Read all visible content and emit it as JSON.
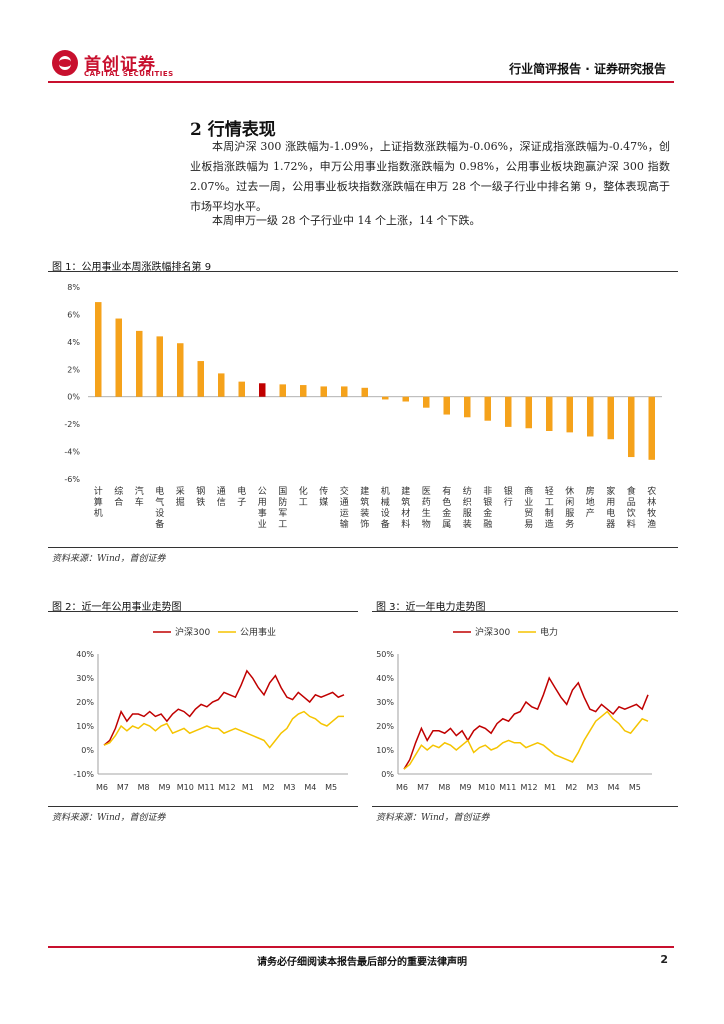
{
  "header": {
    "logo_cn": "首创证券",
    "logo_en": "CAPITAL SECURITIES",
    "report_type": "行业简评报告 · 证券研究报告"
  },
  "section": {
    "title": "2 行情表现",
    "para1": "本周沪深 300 涨跌幅为-1.09%，上证指数涨跌幅为-0.06%，深证成指涨跌幅为-0.47%，创业板指涨跌幅为 1.72%，申万公用事业指数涨跌幅为 0.98%，公用事业板块跑赢沪深 300 指数 2.07%。过去一周，公用事业板块指数涨跌幅在申万 28 个一级子行业中排名第 9，整体表现高于市场平均水平。",
    "para2": "本周申万一级 28 个子行业中 14 个上涨，14 个下跌。"
  },
  "fig1": {
    "title": "图 1：公用事业本周涨跌幅排名第 9",
    "source": "资料来源：Wind，首创证券"
  },
  "fig2": {
    "title": "图 2：近一年公用事业走势图",
    "source": "资料来源：Wind，首创证券"
  },
  "fig3": {
    "title": "图 3：近一年电力走势图",
    "source": "资料来源：Wind，首创证券"
  },
  "footer": {
    "disclaimer": "请务必仔细阅读本报告最后部分的重要法律声明",
    "page": "2"
  },
  "colors": {
    "brand": "#c8102e",
    "bar": "#f5a21b",
    "highlight": "#c00000",
    "line1": "#c00000",
    "line2": "#f5c400"
  },
  "chart_data": [
    {
      "type": "bar",
      "title": "公用事业本周涨跌幅排名第 9",
      "categories": [
        "计算机",
        "综合",
        "汽车",
        "电气设备",
        "采掘",
        "钢铁",
        "通信",
        "电子",
        "公用事业",
        "国防军工",
        "化工",
        "传媒",
        "交通运输",
        "建筑装饰",
        "机械设备",
        "建筑材料",
        "医药生物",
        "有色金属",
        "纺织服装",
        "非银金融",
        "银行",
        "商业贸易",
        "轻工制造",
        "休闲服务",
        "房地产",
        "家用电器",
        "食品饮料",
        "农林牧渔"
      ],
      "values": [
        6.9,
        5.7,
        4.8,
        4.4,
        3.9,
        2.6,
        1.7,
        1.1,
        0.98,
        0.9,
        0.85,
        0.75,
        0.75,
        0.65,
        -0.2,
        -0.35,
        -0.8,
        -1.3,
        -1.5,
        -1.75,
        -2.2,
        -2.3,
        -2.5,
        -2.6,
        -2.9,
        -3.1,
        -4.4,
        -4.6
      ],
      "highlight_index": 8,
      "yticks": [
        "8%",
        "6%",
        "4%",
        "2%",
        "0%",
        "-2%",
        "-4%",
        "-6%"
      ],
      "ylim": [
        -6,
        8
      ]
    },
    {
      "type": "line",
      "title": "近一年公用事业走势图",
      "legend": [
        "沪深300",
        "公用事业"
      ],
      "xticks": [
        "M6",
        "M7",
        "M8",
        "M9",
        "M10",
        "M11",
        "M12",
        "M1",
        "M2",
        "M3",
        "M4",
        "M5"
      ],
      "yticks": [
        "40%",
        "30%",
        "20%",
        "10%",
        "0%",
        "-10%"
      ],
      "ylim": [
        -10,
        40
      ],
      "series": [
        {
          "name": "沪深300",
          "values": [
            2,
            4,
            9,
            16,
            12,
            15,
            15,
            14,
            16,
            14,
            15,
            12,
            15,
            17,
            16,
            14,
            17,
            19,
            18,
            20,
            21,
            24,
            23,
            22,
            27,
            33,
            30,
            26,
            23,
            28,
            31,
            26,
            22,
            21,
            24,
            22,
            20,
            23,
            22,
            23,
            24,
            22,
            23
          ]
        },
        {
          "name": "公用事业",
          "values": [
            2,
            3,
            6,
            10,
            8,
            10,
            9,
            11,
            10,
            8,
            10,
            11,
            7,
            8,
            9,
            7,
            8,
            9,
            10,
            9,
            9,
            7,
            8,
            9,
            8,
            7,
            6,
            5,
            4,
            1,
            4,
            7,
            9,
            13,
            15,
            16,
            14,
            13,
            11,
            10,
            12,
            14,
            14
          ]
        }
      ]
    },
    {
      "type": "line",
      "title": "近一年电力走势图",
      "legend": [
        "沪深300",
        "电力"
      ],
      "xticks": [
        "M6",
        "M7",
        "M8",
        "M9",
        "M10",
        "M11",
        "M12",
        "M1",
        "M2",
        "M3",
        "M4",
        "M5"
      ],
      "yticks": [
        "50%",
        "40%",
        "30%",
        "20%",
        "10%",
        "0%"
      ],
      "ylim": [
        0,
        50
      ],
      "series": [
        {
          "name": "沪深300",
          "values": [
            2,
            6,
            13,
            19,
            14,
            18,
            18,
            17,
            19,
            16,
            18,
            14,
            18,
            20,
            19,
            17,
            21,
            23,
            22,
            25,
            26,
            30,
            28,
            27,
            33,
            40,
            36,
            32,
            29,
            35,
            38,
            32,
            27,
            26,
            29,
            27,
            25,
            28,
            27,
            28,
            29,
            27,
            33
          ]
        },
        {
          "name": "电力",
          "values": [
            2,
            4,
            8,
            12,
            10,
            12,
            11,
            13,
            12,
            10,
            12,
            14,
            9,
            11,
            12,
            10,
            11,
            13,
            14,
            13,
            13,
            11,
            12,
            13,
            12,
            10,
            8,
            7,
            6,
            5,
            9,
            14,
            18,
            22,
            24,
            26,
            23,
            21,
            18,
            17,
            20,
            23,
            22
          ]
        }
      ]
    }
  ]
}
